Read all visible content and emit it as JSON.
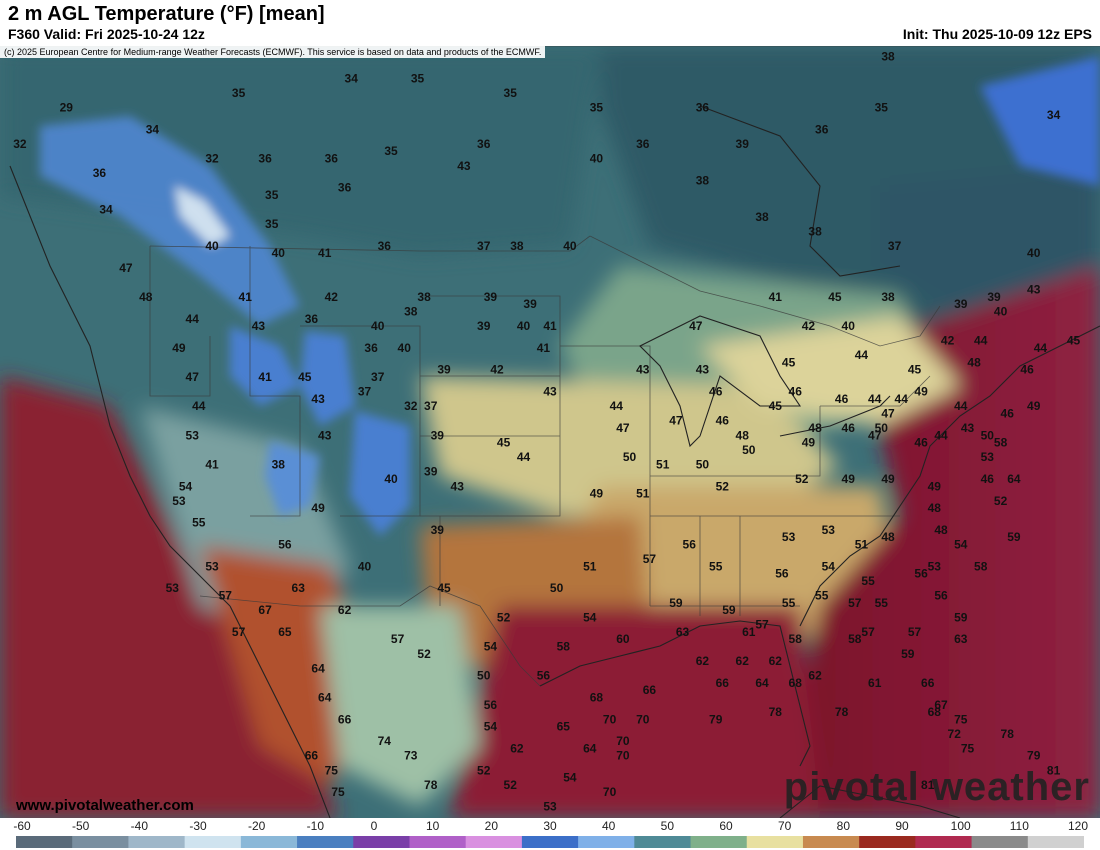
{
  "header": {
    "title": "2 m AGL Temperature (°F) [mean]",
    "valid": "F360 Valid: Fri 2025-10-24 12z",
    "init": "Init: Thu 2025-10-09 12z EPS"
  },
  "credit": "(c) 2025 European Centre for Medium-range Weather Forecasts (ECMWF). This service is based on data and products of the ECMWF.",
  "footer": {
    "url": "www.pivotalweather.com",
    "brand": "pivotal weather"
  },
  "legend": {
    "ticks": [
      "-60",
      "-50",
      "-40",
      "-30",
      "-20",
      "-10",
      "0",
      "10",
      "20",
      "30",
      "40",
      "50",
      "60",
      "70",
      "80",
      "90",
      "100",
      "110",
      "120"
    ],
    "colors": [
      "#5a6b7a",
      "#7a8fa0",
      "#9fb7c9",
      "#cfe3ef",
      "#8ab8d8",
      "#4a7fc0",
      "#7a3fa8",
      "#b060c8",
      "#d990e0",
      "#3c6fc8",
      "#7fb0e8",
      "#4f8a96",
      "#7fb08a",
      "#e8e0a0",
      "#c88a50",
      "#9a2a20",
      "#b02a50",
      "#8a8a8a",
      "#d0d0d0"
    ]
  },
  "temperature_labels": [
    {
      "v": "29",
      "lon": -128.0,
      "lat": 51.5
    },
    {
      "v": "32",
      "lon": -131.5,
      "lat": 49.0
    },
    {
      "v": "34",
      "lon": -121.5,
      "lat": 50.0
    },
    {
      "v": "35",
      "lon": -115.0,
      "lat": 52.5
    },
    {
      "v": "34",
      "lon": -106.5,
      "lat": 53.5
    },
    {
      "v": "35",
      "lon": -101.5,
      "lat": 53.5
    },
    {
      "v": "35",
      "lon": -94.5,
      "lat": 52.5
    },
    {
      "v": "35",
      "lon": -88.0,
      "lat": 51.5
    },
    {
      "v": "36",
      "lon": -80.0,
      "lat": 51.5
    },
    {
      "v": "38",
      "lon": -66.0,
      "lat": 55.0
    },
    {
      "v": "36",
      "lon": -125.5,
      "lat": 47.0
    },
    {
      "v": "32",
      "lon": -117.0,
      "lat": 48.0
    },
    {
      "v": "36",
      "lon": -113.0,
      "lat": 48.0
    },
    {
      "v": "36",
      "lon": -108.0,
      "lat": 48.0
    },
    {
      "v": "35",
      "lon": -103.5,
      "lat": 48.5
    },
    {
      "v": "36",
      "lon": -96.5,
      "lat": 49.0
    },
    {
      "v": "40",
      "lon": -88.0,
      "lat": 48.0
    },
    {
      "v": "36",
      "lon": -84.5,
      "lat": 49.0
    },
    {
      "v": "39",
      "lon": -77.0,
      "lat": 49.0
    },
    {
      "v": "36",
      "lon": -71.0,
      "lat": 50.0
    },
    {
      "v": "35",
      "lon": -66.5,
      "lat": 51.5
    },
    {
      "v": "34",
      "lon": -53.5,
      "lat": 51.0
    },
    {
      "v": "34",
      "lon": -125.0,
      "lat": 44.5
    },
    {
      "v": "35",
      "lon": -112.5,
      "lat": 45.5
    },
    {
      "v": "36",
      "lon": -107.0,
      "lat": 46.0
    },
    {
      "v": "43",
      "lon": -98.0,
      "lat": 47.5
    },
    {
      "v": "38",
      "lon": -80.0,
      "lat": 46.5
    },
    {
      "v": "35",
      "lon": -112.5,
      "lat": 43.5
    },
    {
      "v": "40",
      "lon": -117.0,
      "lat": 42.0
    },
    {
      "v": "40",
      "lon": -112.0,
      "lat": 41.5
    },
    {
      "v": "41",
      "lon": -108.5,
      "lat": 41.5
    },
    {
      "v": "36",
      "lon": -104.0,
      "lat": 42.0
    },
    {
      "v": "37",
      "lon": -96.5,
      "lat": 42.0
    },
    {
      "v": "38",
      "lon": -94.0,
      "lat": 42.0
    },
    {
      "v": "40",
      "lon": -90.0,
      "lat": 42.0
    },
    {
      "v": "38",
      "lon": -75.5,
      "lat": 44.0
    },
    {
      "v": "38",
      "lon": -71.5,
      "lat": 43.0
    },
    {
      "v": "37",
      "lon": -65.5,
      "lat": 42.0
    },
    {
      "v": "40",
      "lon": -55.0,
      "lat": 41.5
    },
    {
      "v": "47",
      "lon": -123.5,
      "lat": 40.5
    },
    {
      "v": "48",
      "lon": -122.0,
      "lat": 38.5
    },
    {
      "v": "41",
      "lon": -114.5,
      "lat": 38.5
    },
    {
      "v": "42",
      "lon": -108.0,
      "lat": 38.5
    },
    {
      "v": "38",
      "lon": -101.0,
      "lat": 38.5
    },
    {
      "v": "39",
      "lon": -96.0,
      "lat": 38.5
    },
    {
      "v": "39",
      "lon": -93.0,
      "lat": 38.0
    },
    {
      "v": "41",
      "lon": -74.5,
      "lat": 38.5
    },
    {
      "v": "45",
      "lon": -70.0,
      "lat": 38.5
    },
    {
      "v": "38",
      "lon": -66.0,
      "lat": 38.5
    },
    {
      "v": "39",
      "lon": -60.5,
      "lat": 38.0
    },
    {
      "v": "39",
      "lon": -58.0,
      "lat": 38.5
    },
    {
      "v": "43",
      "lon": -55.0,
      "lat": 39.0
    },
    {
      "v": "44",
      "lon": -118.5,
      "lat": 37.0
    },
    {
      "v": "43",
      "lon": -113.5,
      "lat": 36.5
    },
    {
      "v": "36",
      "lon": -109.5,
      "lat": 37.0
    },
    {
      "v": "40",
      "lon": -104.5,
      "lat": 36.5
    },
    {
      "v": "38",
      "lon": -102.0,
      "lat": 37.5
    },
    {
      "v": "39",
      "lon": -96.5,
      "lat": 36.5
    },
    {
      "v": "40",
      "lon": -93.5,
      "lat": 36.5
    },
    {
      "v": "41",
      "lon": -91.5,
      "lat": 36.5
    },
    {
      "v": "47",
      "lon": -80.5,
      "lat": 36.5
    },
    {
      "v": "42",
      "lon": -72.0,
      "lat": 36.5
    },
    {
      "v": "40",
      "lon": -69.0,
      "lat": 36.5
    },
    {
      "v": "40",
      "lon": -57.5,
      "lat": 37.5
    },
    {
      "v": "49",
      "lon": -119.5,
      "lat": 35.0
    },
    {
      "v": "36",
      "lon": -105.0,
      "lat": 35.0
    },
    {
      "v": "40",
      "lon": -102.5,
      "lat": 35.0
    },
    {
      "v": "41",
      "lon": -92.0,
      "lat": 35.0
    },
    {
      "v": "42",
      "lon": -61.5,
      "lat": 35.5
    },
    {
      "v": "44",
      "lon": -59.0,
      "lat": 35.5
    },
    {
      "v": "44",
      "lon": -54.5,
      "lat": 35.0
    },
    {
      "v": "45",
      "lon": -52.0,
      "lat": 35.5
    },
    {
      "v": "47",
      "lon": -118.5,
      "lat": 33.0
    },
    {
      "v": "41",
      "lon": -113.0,
      "lat": 33.0
    },
    {
      "v": "45",
      "lon": -110.0,
      "lat": 33.0
    },
    {
      "v": "37",
      "lon": -104.5,
      "lat": 33.0
    },
    {
      "v": "39",
      "lon": -99.5,
      "lat": 33.5
    },
    {
      "v": "42",
      "lon": -95.5,
      "lat": 33.5
    },
    {
      "v": "43",
      "lon": -84.5,
      "lat": 33.5
    },
    {
      "v": "43",
      "lon": -80.0,
      "lat": 33.5
    },
    {
      "v": "45",
      "lon": -73.5,
      "lat": 34.0
    },
    {
      "v": "44",
      "lon": -68.0,
      "lat": 34.5
    },
    {
      "v": "48",
      "lon": -59.5,
      "lat": 34.0
    },
    {
      "v": "46",
      "lon": -55.5,
      "lat": 33.5
    },
    {
      "v": "44",
      "lon": -118.0,
      "lat": 31.0
    },
    {
      "v": "43",
      "lon": -109.0,
      "lat": 31.5
    },
    {
      "v": "37",
      "lon": -105.5,
      "lat": 32.0
    },
    {
      "v": "32",
      "lon": -102.0,
      "lat": 31.0
    },
    {
      "v": "37",
      "lon": -100.5,
      "lat": 31.0
    },
    {
      "v": "43",
      "lon": -91.5,
      "lat": 32.0
    },
    {
      "v": "44",
      "lon": -86.5,
      "lat": 31.0
    },
    {
      "v": "46",
      "lon": -79.0,
      "lat": 32.0
    },
    {
      "v": "45",
      "lon": -74.5,
      "lat": 31.0
    },
    {
      "v": "46",
      "lon": -73.0,
      "lat": 32.0
    },
    {
      "v": "46",
      "lon": -69.5,
      "lat": 31.5
    },
    {
      "v": "44",
      "lon": -67.0,
      "lat": 31.5
    },
    {
      "v": "47",
      "lon": -66.0,
      "lat": 30.5
    },
    {
      "v": "44",
      "lon": -65.0,
      "lat": 31.5
    },
    {
      "v": "45",
      "lon": -64.0,
      "lat": 33.5
    },
    {
      "v": "49",
      "lon": -63.5,
      "lat": 32.0
    },
    {
      "v": "44",
      "lon": -60.5,
      "lat": 31.0
    },
    {
      "v": "46",
      "lon": -57.0,
      "lat": 30.5
    },
    {
      "v": "49",
      "lon": -55.0,
      "lat": 31.0
    },
    {
      "v": "53",
      "lon": -118.5,
      "lat": 29.0
    },
    {
      "v": "43",
      "lon": -108.5,
      "lat": 29.0
    },
    {
      "v": "39",
      "lon": -100.0,
      "lat": 29.0
    },
    {
      "v": "45",
      "lon": -95.0,
      "lat": 28.5
    },
    {
      "v": "47",
      "lon": -86.0,
      "lat": 29.5
    },
    {
      "v": "47",
      "lon": -82.0,
      "lat": 30.0
    },
    {
      "v": "46",
      "lon": -78.5,
      "lat": 30.0
    },
    {
      "v": "48",
      "lon": -77.0,
      "lat": 29.0
    },
    {
      "v": "48",
      "lon": -71.5,
      "lat": 29.5
    },
    {
      "v": "46",
      "lon": -69.0,
      "lat": 29.5
    },
    {
      "v": "50",
      "lon": -66.5,
      "lat": 29.5
    },
    {
      "v": "44",
      "lon": -62.0,
      "lat": 29.0
    },
    {
      "v": "43",
      "lon": -60.0,
      "lat": 29.5
    },
    {
      "v": "50",
      "lon": -58.5,
      "lat": 29.0
    },
    {
      "v": "41",
      "lon": -117.0,
      "lat": 27.0
    },
    {
      "v": "38",
      "lon": -112.0,
      "lat": 27.0
    },
    {
      "v": "40",
      "lon": -103.5,
      "lat": 26.0
    },
    {
      "v": "39",
      "lon": -100.5,
      "lat": 26.5
    },
    {
      "v": "43",
      "lon": -98.5,
      "lat": 25.5
    },
    {
      "v": "44",
      "lon": -93.5,
      "lat": 27.5
    },
    {
      "v": "50",
      "lon": -85.5,
      "lat": 27.5
    },
    {
      "v": "50",
      "lon": -80.0,
      "lat": 27.0
    },
    {
      "v": "51",
      "lon": -83.0,
      "lat": 27.0
    },
    {
      "v": "50",
      "lon": -76.5,
      "lat": 28.0
    },
    {
      "v": "49",
      "lon": -72.0,
      "lat": 28.5
    },
    {
      "v": "47",
      "lon": -67.0,
      "lat": 29.0
    },
    {
      "v": "46",
      "lon": -63.5,
      "lat": 28.5
    },
    {
      "v": "53",
      "lon": -58.5,
      "lat": 27.5
    },
    {
      "v": "58",
      "lon": -57.5,
      "lat": 28.5
    },
    {
      "v": "54",
      "lon": -119.0,
      "lat": 25.5
    },
    {
      "v": "53",
      "lon": -119.5,
      "lat": 24.5
    },
    {
      "v": "49",
      "lon": -109.0,
      "lat": 24.0
    },
    {
      "v": "49",
      "lon": -88.0,
      "lat": 25.0
    },
    {
      "v": "51",
      "lon": -84.5,
      "lat": 25.0
    },
    {
      "v": "52",
      "lon": -78.5,
      "lat": 25.5
    },
    {
      "v": "52",
      "lon": -72.5,
      "lat": 26.0
    },
    {
      "v": "49",
      "lon": -69.0,
      "lat": 26.0
    },
    {
      "v": "49",
      "lon": -66.0,
      "lat": 26.0
    },
    {
      "v": "49",
      "lon": -62.5,
      "lat": 25.5
    },
    {
      "v": "46",
      "lon": -58.5,
      "lat": 26.0
    },
    {
      "v": "64",
      "lon": -56.5,
      "lat": 26.0
    },
    {
      "v": "55",
      "lon": -118.0,
      "lat": 23.0
    },
    {
      "v": "39",
      "lon": -100.0,
      "lat": 22.5
    },
    {
      "v": "53",
      "lon": -73.5,
      "lat": 22.0
    },
    {
      "v": "48",
      "lon": -62.5,
      "lat": 24.0
    },
    {
      "v": "52",
      "lon": -57.5,
      "lat": 24.5
    },
    {
      "v": "56",
      "lon": -111.5,
      "lat": 21.5
    },
    {
      "v": "56",
      "lon": -81.0,
      "lat": 21.5
    },
    {
      "v": "51",
      "lon": -68.0,
      "lat": 21.5
    },
    {
      "v": "53",
      "lon": -70.5,
      "lat": 22.5
    },
    {
      "v": "48",
      "lon": -66.0,
      "lat": 22.0
    },
    {
      "v": "48",
      "lon": -62.0,
      "lat": 22.5
    },
    {
      "v": "54",
      "lon": -60.5,
      "lat": 21.5
    },
    {
      "v": "59",
      "lon": -56.5,
      "lat": 22.0
    },
    {
      "v": "53",
      "lon": -117.0,
      "lat": 20.0
    },
    {
      "v": "40",
      "lon": -105.5,
      "lat": 20.0
    },
    {
      "v": "51",
      "lon": -88.5,
      "lat": 20.0
    },
    {
      "v": "57",
      "lon": -84.0,
      "lat": 20.5
    },
    {
      "v": "55",
      "lon": -79.0,
      "lat": 20.0
    },
    {
      "v": "56",
      "lon": -74.0,
      "lat": 19.5
    },
    {
      "v": "53",
      "lon": -62.5,
      "lat": 20.0
    },
    {
      "v": "54",
      "lon": -70.5,
      "lat": 20.0
    },
    {
      "v": "55",
      "lon": -67.5,
      "lat": 19.0
    },
    {
      "v": "56",
      "lon": -63.5,
      "lat": 19.5
    },
    {
      "v": "58",
      "lon": -59.0,
      "lat": 20.0
    },
    {
      "v": "53",
      "lon": -120.0,
      "lat": 18.5
    },
    {
      "v": "57",
      "lon": -116.0,
      "lat": 18.0
    },
    {
      "v": "63",
      "lon": -110.5,
      "lat": 18.5
    },
    {
      "v": "45",
      "lon": -99.5,
      "lat": 18.5
    },
    {
      "v": "50",
      "lon": -91.0,
      "lat": 18.5
    },
    {
      "v": "55",
      "lon": -73.5,
      "lat": 17.5
    },
    {
      "v": "55",
      "lon": -71.0,
      "lat": 18.0
    },
    {
      "v": "57",
      "lon": -68.5,
      "lat": 17.5
    },
    {
      "v": "55",
      "lon": -66.5,
      "lat": 17.5
    },
    {
      "v": "56",
      "lon": -62.0,
      "lat": 18.0
    },
    {
      "v": "67",
      "lon": -113.0,
      "lat": 17.0
    },
    {
      "v": "62",
      "lon": -107.0,
      "lat": 17.0
    },
    {
      "v": "52",
      "lon": -95.0,
      "lat": 16.5
    },
    {
      "v": "54",
      "lon": -88.5,
      "lat": 16.5
    },
    {
      "v": "59",
      "lon": -82.0,
      "lat": 17.5
    },
    {
      "v": "59",
      "lon": -78.0,
      "lat": 17.0
    },
    {
      "v": "57",
      "lon": -75.5,
      "lat": 16.0
    },
    {
      "v": "57",
      "lon": -67.5,
      "lat": 15.5
    },
    {
      "v": "59",
      "lon": -60.5,
      "lat": 16.5
    },
    {
      "v": "57",
      "lon": -115.0,
      "lat": 15.5
    },
    {
      "v": "65",
      "lon": -111.5,
      "lat": 15.5
    },
    {
      "v": "57",
      "lon": -103.0,
      "lat": 15.0
    },
    {
      "v": "60",
      "lon": -86.0,
      "lat": 15.0
    },
    {
      "v": "63",
      "lon": -81.5,
      "lat": 15.5
    },
    {
      "v": "61",
      "lon": -76.5,
      "lat": 15.5
    },
    {
      "v": "58",
      "lon": -73.0,
      "lat": 15.0
    },
    {
      "v": "58",
      "lon": -68.5,
      "lat": 15.0
    },
    {
      "v": "57",
      "lon": -64.0,
      "lat": 15.5
    },
    {
      "v": "63",
      "lon": -60.5,
      "lat": 15.0
    },
    {
      "v": "52",
      "lon": -101.0,
      "lat": 14.0
    },
    {
      "v": "54",
      "lon": -96.0,
      "lat": 14.5
    },
    {
      "v": "58",
      "lon": -90.5,
      "lat": 14.5
    },
    {
      "v": "62",
      "lon": -80.0,
      "lat": 13.5
    },
    {
      "v": "62",
      "lon": -77.0,
      "lat": 13.5
    },
    {
      "v": "62",
      "lon": -74.5,
      "lat": 13.5
    },
    {
      "v": "59",
      "lon": -64.5,
      "lat": 14.0
    },
    {
      "v": "64",
      "lon": -109.0,
      "lat": 13.0
    },
    {
      "v": "50",
      "lon": -96.5,
      "lat": 12.5
    },
    {
      "v": "56",
      "lon": -92.0,
      "lat": 12.5
    },
    {
      "v": "62",
      "lon": -71.5,
      "lat": 12.5
    },
    {
      "v": "61",
      "lon": -67.0,
      "lat": 12.0
    },
    {
      "v": "66",
      "lon": -63.0,
      "lat": 12.0
    },
    {
      "v": "66",
      "lon": -78.5,
      "lat": 12.0
    },
    {
      "v": "64",
      "lon": -75.5,
      "lat": 12.0
    },
    {
      "v": "68",
      "lon": -73.0,
      "lat": 12.0
    },
    {
      "v": "66",
      "lon": -84.0,
      "lat": 11.5
    },
    {
      "v": "64",
      "lon": -108.5,
      "lat": 11.0
    },
    {
      "v": "56",
      "lon": -96.0,
      "lat": 10.5
    },
    {
      "v": "68",
      "lon": -88.0,
      "lat": 11.0
    },
    {
      "v": "67",
      "lon": -62.0,
      "lat": 10.5
    },
    {
      "v": "66",
      "lon": -107.0,
      "lat": 9.5
    },
    {
      "v": "54",
      "lon": -96.0,
      "lat": 9.0
    },
    {
      "v": "65",
      "lon": -90.5,
      "lat": 9.0
    },
    {
      "v": "70",
      "lon": -87.0,
      "lat": 9.5
    },
    {
      "v": "70",
      "lon": -84.5,
      "lat": 9.5
    },
    {
      "v": "79",
      "lon": -79.0,
      "lat": 9.5
    },
    {
      "v": "78",
      "lon": -74.5,
      "lat": 10.0
    },
    {
      "v": "78",
      "lon": -69.5,
      "lat": 10.0
    },
    {
      "v": "68",
      "lon": -62.5,
      "lat": 10.0
    },
    {
      "v": "75",
      "lon": -60.5,
      "lat": 9.5
    },
    {
      "v": "72",
      "lon": -61.0,
      "lat": 8.5
    },
    {
      "v": "78",
      "lon": -57.0,
      "lat": 8.5
    },
    {
      "v": "74",
      "lon": -104.0,
      "lat": 8.0
    },
    {
      "v": "62",
      "lon": -94.0,
      "lat": 7.5
    },
    {
      "v": "64",
      "lon": -88.5,
      "lat": 7.5
    },
    {
      "v": "70",
      "lon": -86.0,
      "lat": 8.0
    },
    {
      "v": "75",
      "lon": -60.0,
      "lat": 7.5
    },
    {
      "v": "66",
      "lon": -109.5,
      "lat": 7.0
    },
    {
      "v": "73",
      "lon": -102.0,
      "lat": 7.0
    },
    {
      "v": "70",
      "lon": -86.0,
      "lat": 7.0
    },
    {
      "v": "79",
      "lon": -55.0,
      "lat": 7.0
    },
    {
      "v": "75",
      "lon": -108.0,
      "lat": 6.0
    },
    {
      "v": "52",
      "lon": -96.5,
      "lat": 6.0
    },
    {
      "v": "54",
      "lon": -90.0,
      "lat": 5.5
    },
    {
      "v": "81",
      "lon": -53.5,
      "lat": 6.0
    },
    {
      "v": "75",
      "lon": -107.5,
      "lat": 4.5
    },
    {
      "v": "78",
      "lon": -100.5,
      "lat": 5.0
    },
    {
      "v": "52",
      "lon": -94.5,
      "lat": 5.0
    },
    {
      "v": "70",
      "lon": -87.0,
      "lat": 4.5
    },
    {
      "v": "81",
      "lon": -63.0,
      "lat": 5.0
    },
    {
      "v": "53",
      "lon": -91.5,
      "lat": 3.5
    }
  ]
}
